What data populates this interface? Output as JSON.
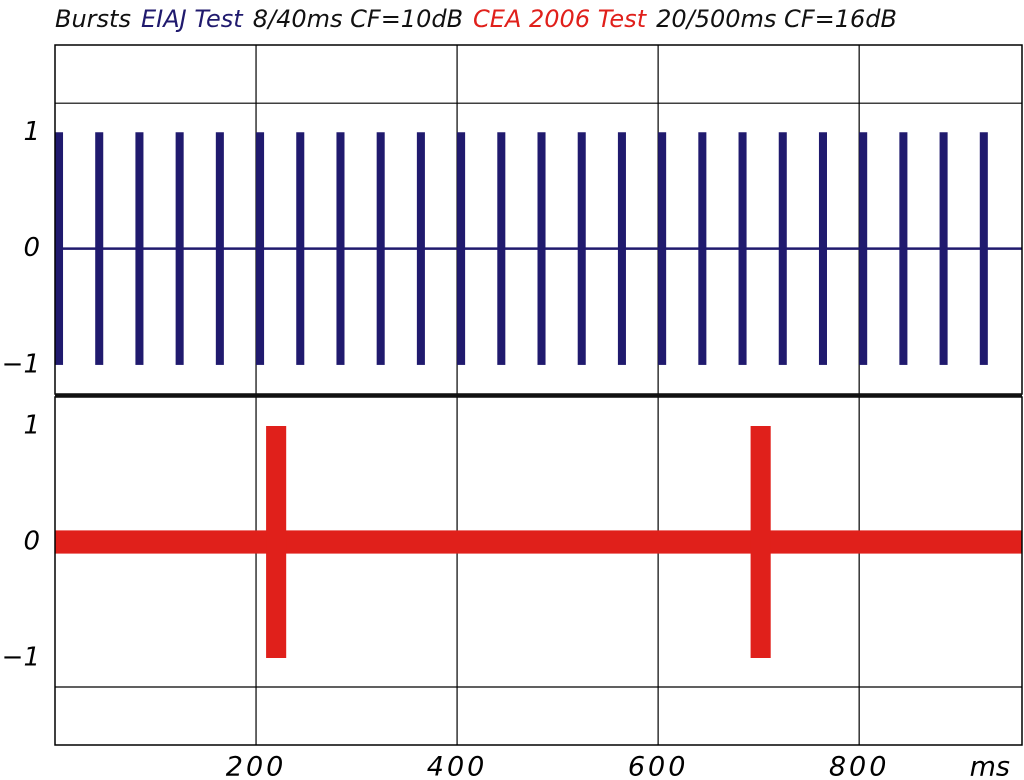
{
  "chart_data": [
    {
      "type": "bursts",
      "title": [
        {
          "text": "Bursts",
          "color": "#111111"
        },
        {
          "text": "EIAJ Test",
          "color": "#201a6e"
        },
        {
          "text": "8/40ms CF=10dB",
          "color": "#111111"
        },
        {
          "text": "CEA 2006 Test",
          "color": "#e0201b"
        },
        {
          "text": "20/500ms CF=16dB",
          "color": "#111111"
        }
      ],
      "xlim": [
        0,
        962
      ],
      "ylim": [
        -1.25,
        1.75
      ],
      "xticks": [
        200,
        400,
        600,
        800
      ],
      "yticks": [
        1,
        0,
        {
          "value": -1,
          "label": "−1"
        }
      ],
      "ygrid": [
        1.25
      ],
      "series": [
        {
          "color": "#201a6e",
          "width": 8,
          "baseline": 0,
          "x": [
            0,
            40,
            80,
            120,
            160,
            200,
            240,
            280,
            320,
            360,
            400,
            440,
            480,
            520,
            560,
            600,
            640,
            680,
            720,
            760,
            800,
            840,
            880,
            920
          ],
          "values": [
            1,
            1,
            1,
            1,
            1,
            1,
            1,
            1,
            1,
            1,
            1,
            1,
            1,
            1,
            1,
            1,
            1,
            1,
            1,
            1,
            1,
            1,
            1,
            1
          ]
        }
      ]
    },
    {
      "type": "bursts",
      "xlim": [
        0,
        962
      ],
      "ylim": [
        -1.75,
        1.25
      ],
      "xticks": [
        200,
        400,
        600,
        800
      ],
      "xlabel": "ms",
      "yticks": [
        1,
        0,
        {
          "value": -1,
          "label": "−1"
        }
      ],
      "ygrid": [
        -1.25
      ],
      "series": [
        {
          "color": "#e0201b",
          "width": 20,
          "baseline": 0.1,
          "x": [
            210,
            692
          ],
          "values": [
            1,
            1
          ]
        }
      ]
    }
  ]
}
